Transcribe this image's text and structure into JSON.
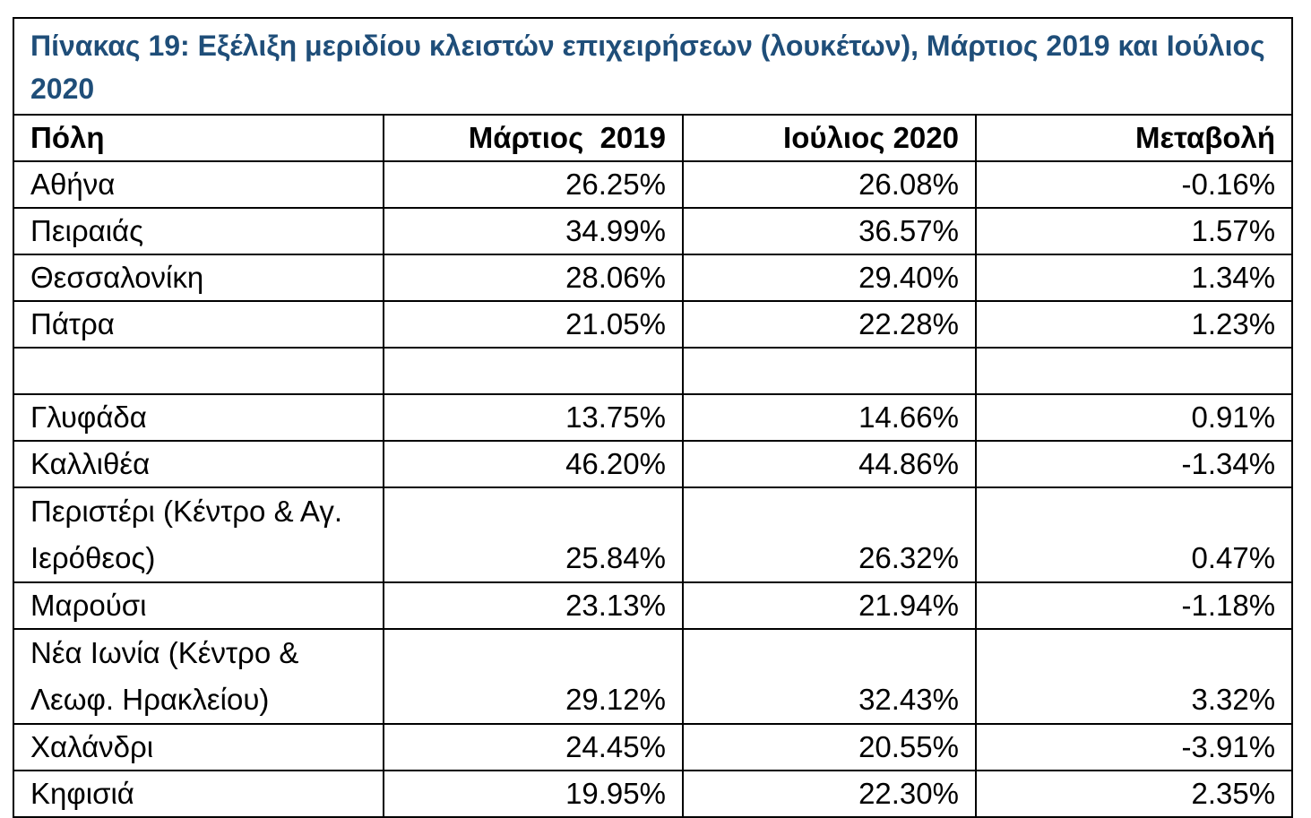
{
  "title": "Πίνακας 19: Εξέλιξη μεριδίου κλειστών επιχειρήσεων (λουκέτων), Μάρτιος 2019 και Ιούλιος 2020",
  "headers": [
    "Πόλη",
    "Μάρτιος  2019",
    "Ιούλιος 2020",
    "Μεταβολή"
  ],
  "rows": [
    {
      "city": "Αθήνα",
      "mar2019": "26.25%",
      "jul2020": "26.08%",
      "change": "-0.16%"
    },
    {
      "city": "Πειραιάς",
      "mar2019": "34.99%",
      "jul2020": "36.57%",
      "change": "1.57%"
    },
    {
      "city": "Θεσσαλονίκη",
      "mar2019": "28.06%",
      "jul2020": "29.40%",
      "change": "1.34%"
    },
    {
      "city": "Πάτρα",
      "mar2019": "21.05%",
      "jul2020": "22.28%",
      "change": "1.23%"
    },
    {
      "city": "",
      "mar2019": "",
      "jul2020": "",
      "change": ""
    },
    {
      "city": "Γλυφάδα",
      "mar2019": "13.75%",
      "jul2020": "14.66%",
      "change": "0.91%"
    },
    {
      "city": "Καλλιθέα",
      "mar2019": "46.20%",
      "jul2020": "44.86%",
      "change": "-1.34%"
    },
    {
      "city": "Περιστέρι (Κέντρο & Αγ. Ιερόθεος)",
      "mar2019": "25.84%",
      "jul2020": "26.32%",
      "change": "0.47%"
    },
    {
      "city": "Μαρούσι",
      "mar2019": "23.13%",
      "jul2020": "21.94%",
      "change": "-1.18%"
    },
    {
      "city": "Νέα Ιωνία (Κέντρο & Λεωφ. Ηρακλείου)",
      "mar2019": "29.12%",
      "jul2020": "32.43%",
      "change": "3.32%"
    },
    {
      "city": "Χαλάνδρι",
      "mar2019": "24.45%",
      "jul2020": "20.55%",
      "change": "-3.91%"
    },
    {
      "city": "Κηφισιά",
      "mar2019": "19.95%",
      "jul2020": "22.30%",
      "change": "2.35%"
    }
  ],
  "colors": {
    "title": "#1f4e79",
    "border": "#000000"
  }
}
